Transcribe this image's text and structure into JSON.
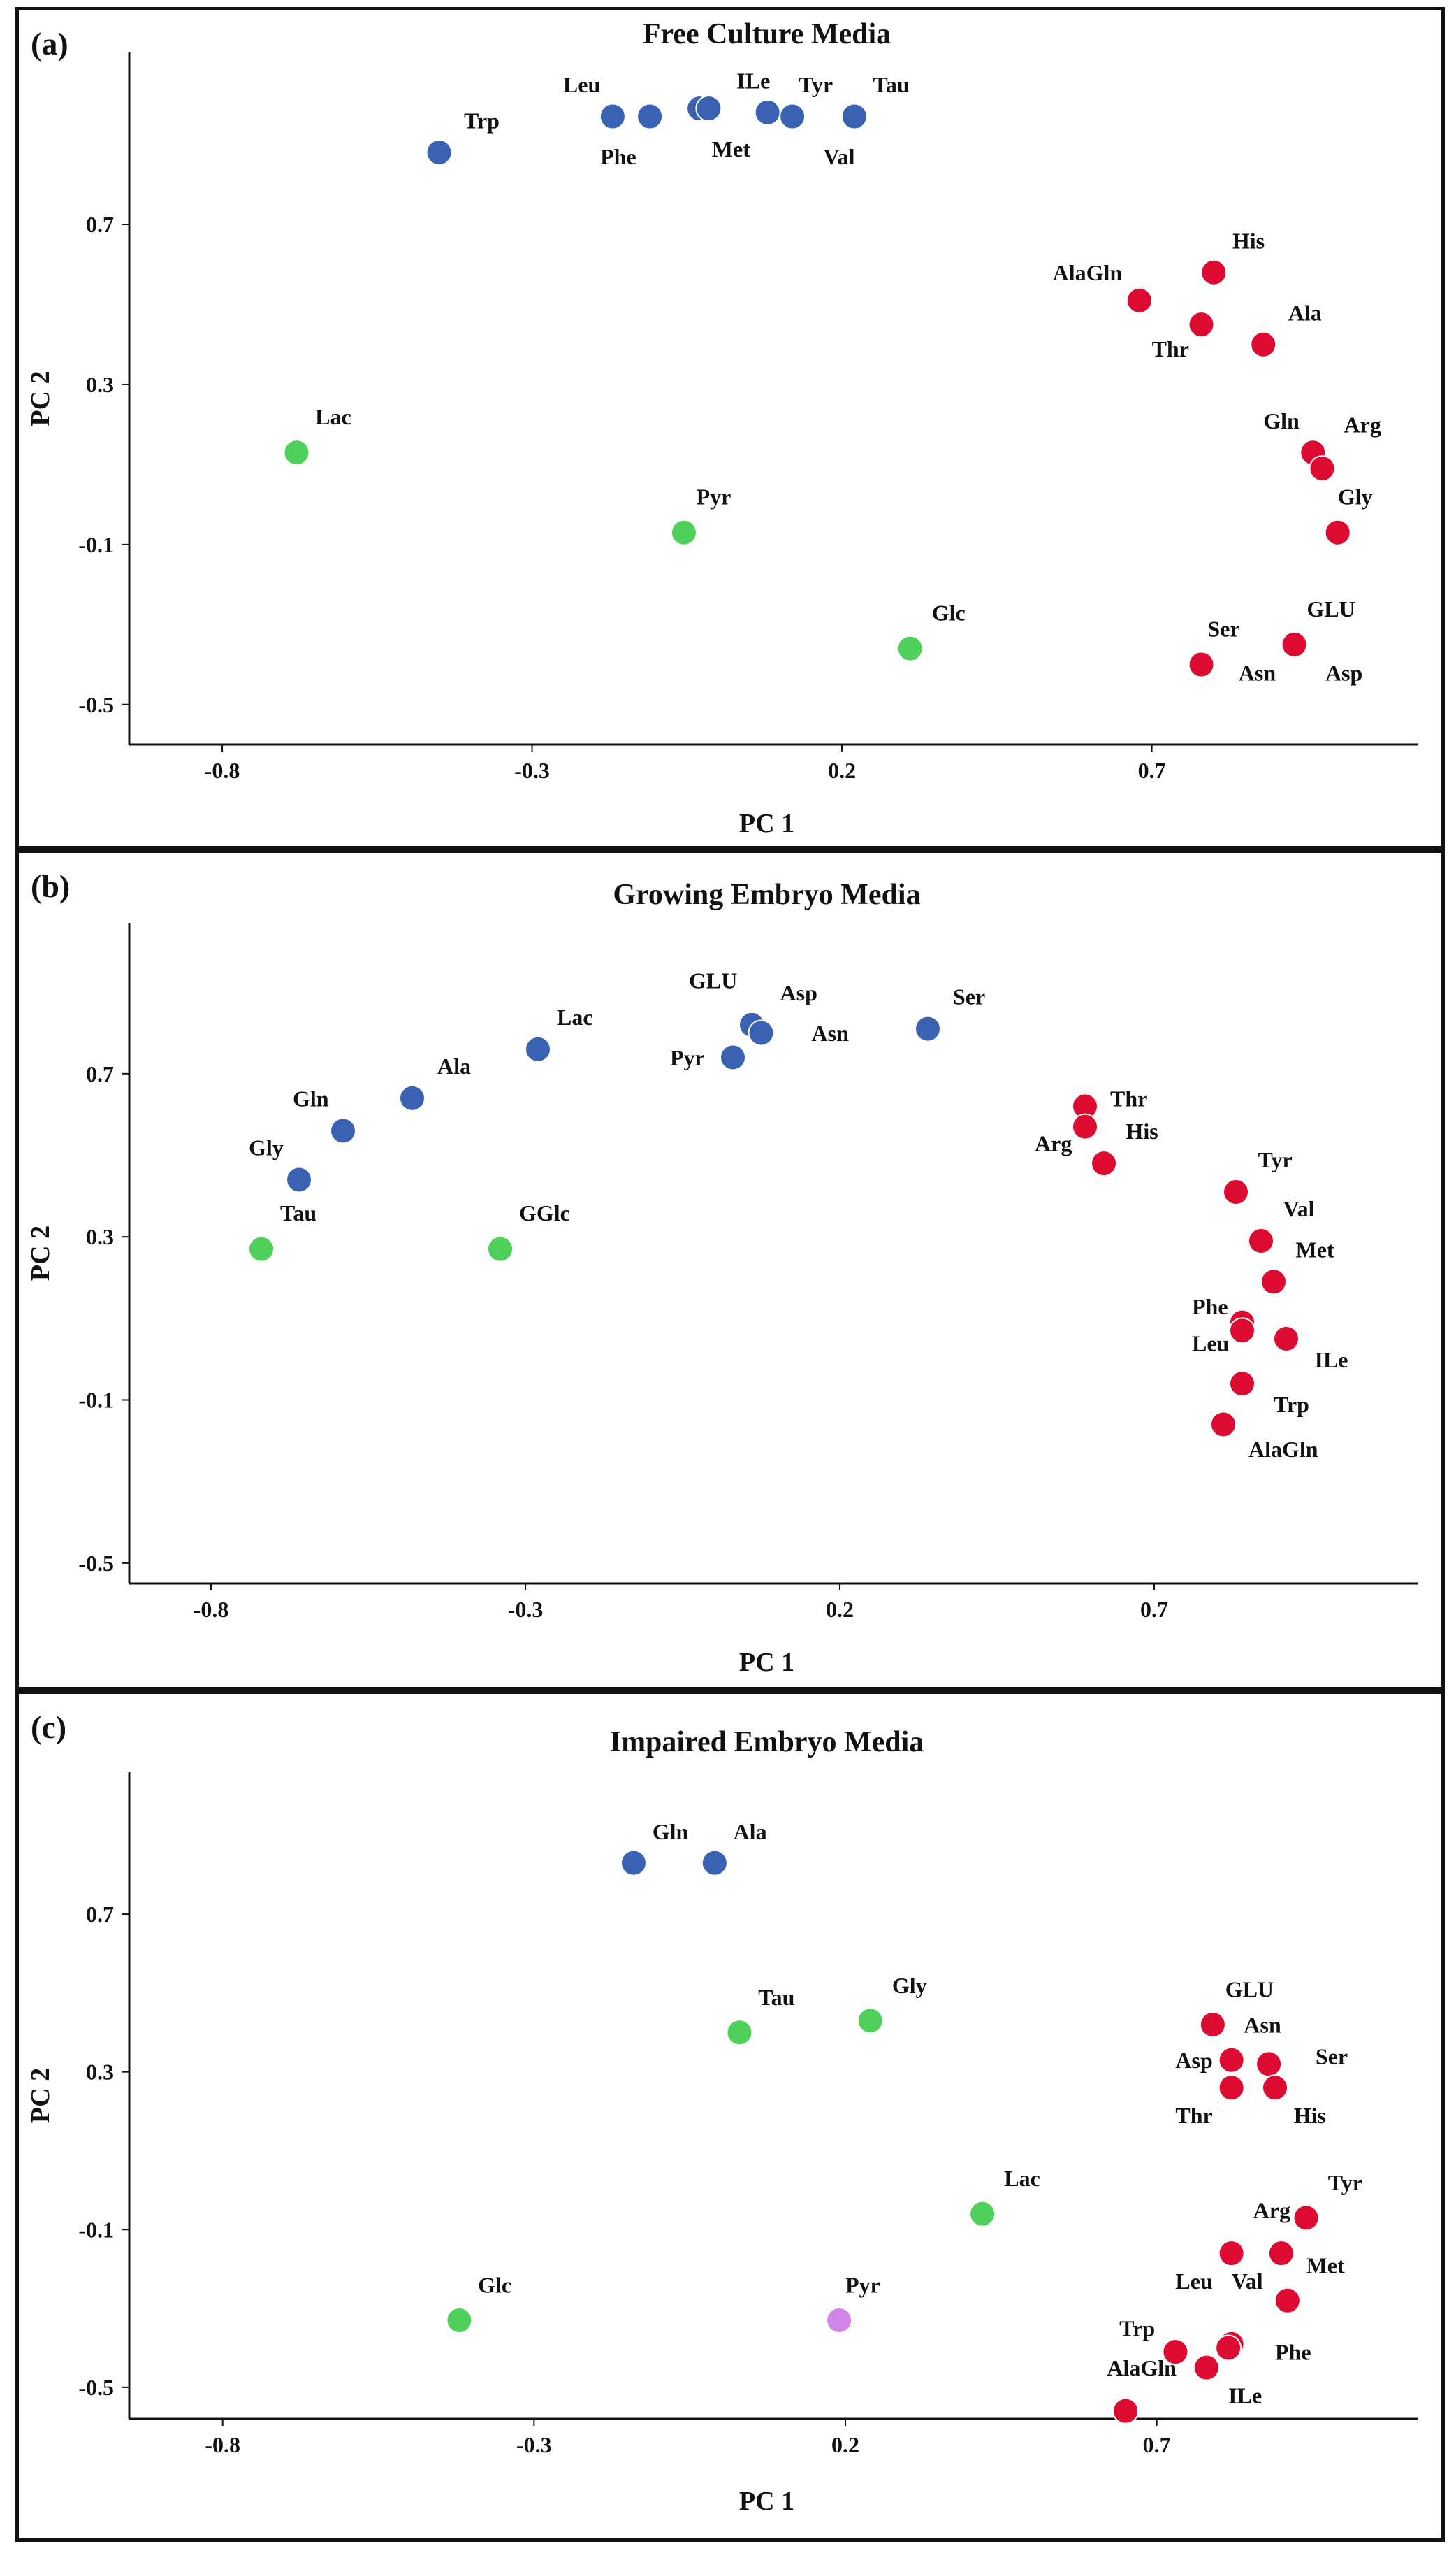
{
  "colors": {
    "blue": "#3a62b3",
    "red": "#dd0b31",
    "green": "#4fd05a",
    "purple": "#cf86e8",
    "axis": "#111111",
    "frame": "#111111"
  },
  "chart_data": [
    {
      "type": "scatter",
      "panel_label": "(a)",
      "title": "Free Culture Media",
      "xlabel": "PC 1",
      "ylabel": "PC 2",
      "xlim": [
        -0.95,
        1.13
      ],
      "ylim": [
        -0.6,
        1.13
      ],
      "xticks": [
        -0.8,
        -0.3,
        0.2,
        0.7
      ],
      "yticks": [
        0.7,
        0.3,
        -0.1,
        -0.5
      ],
      "xtick_labels": [
        "-0.8",
        "-0.3",
        "0.2",
        "0.7"
      ],
      "ytick_labels": [
        "0.7",
        "0.3",
        "-0.1",
        "-0.5"
      ],
      "points": [
        {
          "label": "Trp",
          "x": -0.45,
          "y": 0.88,
          "color": "blue",
          "ldx": 0.04,
          "ldy": 0.06
        },
        {
          "label": "Leu",
          "x": -0.17,
          "y": 0.97,
          "color": "blue",
          "ldx": -0.08,
          "ldy": 0.06
        },
        {
          "label": "Phe",
          "x": -0.11,
          "y": 0.97,
          "color": "blue",
          "ldx": -0.08,
          "ldy": -0.12
        },
        {
          "label": "Met",
          "x": -0.03,
          "y": 0.99,
          "color": "blue",
          "ldx": 0.02,
          "ldy": -0.12
        },
        {
          "label": "",
          "x": -0.015,
          "y": 0.99,
          "color": "blue",
          "ldx": 0,
          "ldy": 0
        },
        {
          "label": "ILe",
          "x": 0.08,
          "y": 0.98,
          "color": "blue",
          "ldx": -0.05,
          "ldy": 0.06
        },
        {
          "label": "Tyr",
          "x": 0.12,
          "y": 0.97,
          "color": "blue",
          "ldx": 0.01,
          "ldy": 0.06
        },
        {
          "label": "Tau",
          "x": 0.22,
          "y": 0.97,
          "color": "blue",
          "ldx": 0.03,
          "ldy": 0.06
        },
        {
          "label": "Val",
          "x": 0.22,
          "y": 0.97,
          "color": "blue",
          "ldx": -0.05,
          "ldy": -0.12
        },
        {
          "label": "His",
          "x": 0.8,
          "y": 0.58,
          "color": "red",
          "ldx": 0.03,
          "ldy": 0.06
        },
        {
          "label": "AlaGln",
          "x": 0.68,
          "y": 0.51,
          "color": "red",
          "ldx": -0.14,
          "ldy": 0.05
        },
        {
          "label": "Thr",
          "x": 0.78,
          "y": 0.45,
          "color": "red",
          "ldx": -0.08,
          "ldy": -0.08
        },
        {
          "label": "Ala",
          "x": 0.88,
          "y": 0.4,
          "color": "red",
          "ldx": 0.04,
          "ldy": 0.06
        },
        {
          "label": "Gln",
          "x": 0.96,
          "y": 0.13,
          "color": "red",
          "ldx": -0.08,
          "ldy": 0.06
        },
        {
          "label": "Arg",
          "x": 0.975,
          "y": 0.09,
          "color": "red",
          "ldx": 0.035,
          "ldy": 0.09
        },
        {
          "label": "Gly",
          "x": 1.0,
          "y": -0.07,
          "color": "red",
          "ldx": 0.0,
          "ldy": 0.07
        },
        {
          "label": "GLU",
          "x": 0.93,
          "y": -0.35,
          "color": "red",
          "ldx": 0.02,
          "ldy": 0.07
        },
        {
          "label": "Ser",
          "x": 0.78,
          "y": -0.4,
          "color": "red",
          "ldx": 0.01,
          "ldy": 0.07
        },
        {
          "label": "Asn",
          "x": 0.78,
          "y": -0.4,
          "color": "red",
          "ldx": 0.06,
          "ldy": -0.04
        },
        {
          "label": "Asp",
          "x": 0.93,
          "y": -0.35,
          "color": "red",
          "ldx": 0.05,
          "ldy": -0.09
        },
        {
          "label": "Lac",
          "x": -0.68,
          "y": 0.13,
          "color": "green",
          "ldx": 0.03,
          "ldy": 0.07
        },
        {
          "label": "Pyr",
          "x": -0.055,
          "y": -0.07,
          "color": "green",
          "ldx": 0.02,
          "ldy": 0.07
        },
        {
          "label": "Glc",
          "x": 0.31,
          "y": -0.36,
          "color": "green",
          "ldx": 0.035,
          "ldy": 0.07
        }
      ]
    },
    {
      "type": "scatter",
      "panel_label": "(b)",
      "title": "Growing Embryo Media",
      "xlabel": "PC 1",
      "ylabel": "PC 2",
      "xlim": [
        -0.93,
        1.12
      ],
      "ylim": [
        -0.55,
        1.07
      ],
      "xticks": [
        -0.8,
        -0.3,
        0.2,
        0.7
      ],
      "yticks": [
        0.7,
        0.3,
        -0.1,
        -0.5
      ],
      "xtick_labels": [
        "-0.8",
        "-0.3",
        "0.2",
        "0.7"
      ],
      "ytick_labels": [
        "0.7",
        "0.3",
        "-0.1",
        "-0.5"
      ],
      "points": [
        {
          "label": "Lac",
          "x": -0.28,
          "y": 0.76,
          "color": "blue",
          "ldx": 0.03,
          "ldy": 0.06
        },
        {
          "label": "Ala",
          "x": -0.48,
          "y": 0.64,
          "color": "blue",
          "ldx": 0.04,
          "ldy": 0.06
        },
        {
          "label": "Gln",
          "x": -0.59,
          "y": 0.56,
          "color": "blue",
          "ldx": -0.08,
          "ldy": 0.06
        },
        {
          "label": "Gly",
          "x": -0.66,
          "y": 0.44,
          "color": "blue",
          "ldx": -0.08,
          "ldy": 0.06
        },
        {
          "label": "GLU",
          "x": 0.06,
          "y": 0.82,
          "color": "blue",
          "ldx": -0.1,
          "ldy": 0.09
        },
        {
          "label": "Asp",
          "x": 0.075,
          "y": 0.8,
          "color": "blue",
          "ldx": 0.03,
          "ldy": 0.08
        },
        {
          "label": "Pyr",
          "x": 0.03,
          "y": 0.74,
          "color": "blue",
          "ldx": -0.1,
          "ldy": -0.02
        },
        {
          "label": "Asn",
          "x": 0.075,
          "y": 0.8,
          "color": "blue",
          "ldx": 0.08,
          "ldy": -0.02
        },
        {
          "label": "Ser",
          "x": 0.34,
          "y": 0.81,
          "color": "blue",
          "ldx": 0.04,
          "ldy": 0.06
        },
        {
          "label": "Thr",
          "x": 0.59,
          "y": 0.62,
          "color": "red",
          "ldx": 0.04,
          "ldy": 0.0
        },
        {
          "label": "Arg",
          "x": 0.59,
          "y": 0.57,
          "color": "red",
          "ldx": -0.08,
          "ldy": -0.06
        },
        {
          "label": "His",
          "x": 0.62,
          "y": 0.48,
          "color": "red",
          "ldx": 0.035,
          "ldy": 0.06
        },
        {
          "label": "Tyr",
          "x": 0.83,
          "y": 0.41,
          "color": "red",
          "ldx": 0.035,
          "ldy": 0.06
        },
        {
          "label": "Val",
          "x": 0.87,
          "y": 0.29,
          "color": "red",
          "ldx": 0.035,
          "ldy": 0.06
        },
        {
          "label": "Met",
          "x": 0.89,
          "y": 0.19,
          "color": "red",
          "ldx": 0.035,
          "ldy": 0.06
        },
        {
          "label": "Phe",
          "x": 0.84,
          "y": 0.09,
          "color": "red",
          "ldx": -0.08,
          "ldy": 0.02
        },
        {
          "label": "Leu",
          "x": 0.84,
          "y": 0.07,
          "color": "red",
          "ldx": -0.08,
          "ldy": -0.05
        },
        {
          "label": "ILe",
          "x": 0.91,
          "y": 0.05,
          "color": "red",
          "ldx": 0.045,
          "ldy": -0.07
        },
        {
          "label": "Trp",
          "x": 0.84,
          "y": -0.06,
          "color": "red",
          "ldx": 0.05,
          "ldy": -0.07
        },
        {
          "label": "AlaGln",
          "x": 0.81,
          "y": -0.16,
          "color": "red",
          "ldx": 0.04,
          "ldy": -0.08
        },
        {
          "label": "Tau",
          "x": -0.72,
          "y": 0.27,
          "color": "green",
          "ldx": 0.03,
          "ldy": 0.07
        },
        {
          "label": "GGlc",
          "x": -0.34,
          "y": 0.27,
          "color": "green",
          "ldx": 0.03,
          "ldy": 0.07
        }
      ]
    },
    {
      "type": "scatter",
      "panel_label": "(c)",
      "title": "Impaired Embryo Media",
      "xlabel": "PC 1",
      "ylabel": "PC 2",
      "xlim": [
        -0.95,
        1.12
      ],
      "ylim": [
        -0.58,
        1.06
      ],
      "xticks": [
        -0.8,
        -0.3,
        0.2,
        0.7
      ],
      "yticks": [
        0.7,
        0.3,
        -0.1,
        -0.5
      ],
      "xtick_labels": [
        "-0.8",
        "-0.3",
        "0.2",
        "0.7"
      ],
      "ytick_labels": [
        "0.7",
        "0.3",
        "-0.1",
        "-0.5"
      ],
      "points": [
        {
          "label": "Gln",
          "x": -0.14,
          "y": 0.83,
          "color": "blue",
          "ldx": 0.03,
          "ldy": 0.06
        },
        {
          "label": "Ala",
          "x": -0.01,
          "y": 0.83,
          "color": "blue",
          "ldx": 0.03,
          "ldy": 0.06
        },
        {
          "label": "Tau",
          "x": 0.03,
          "y": 0.4,
          "color": "green",
          "ldx": 0.03,
          "ldy": 0.07
        },
        {
          "label": "Gly",
          "x": 0.24,
          "y": 0.43,
          "color": "green",
          "ldx": 0.035,
          "ldy": 0.07
        },
        {
          "label": "Lac",
          "x": 0.42,
          "y": -0.06,
          "color": "green",
          "ldx": 0.035,
          "ldy": 0.07
        },
        {
          "label": "Glc",
          "x": -0.42,
          "y": -0.33,
          "color": "green",
          "ldx": 0.03,
          "ldy": 0.07
        },
        {
          "label": "Pyr",
          "x": 0.19,
          "y": -0.33,
          "color": "purple",
          "ldx": 0.01,
          "ldy": 0.07
        },
        {
          "label": "GLU",
          "x": 0.79,
          "y": 0.42,
          "color": "red",
          "ldx": 0.02,
          "ldy": 0.07
        },
        {
          "label": "Asp",
          "x": 0.82,
          "y": 0.33,
          "color": "red",
          "ldx": -0.09,
          "ldy": -0.02
        },
        {
          "label": "Asn",
          "x": 0.88,
          "y": 0.32,
          "color": "red",
          "ldx": -0.04,
          "ldy": 0.08
        },
        {
          "label": "Thr",
          "x": 0.82,
          "y": 0.26,
          "color": "red",
          "ldx": -0.09,
          "ldy": -0.09
        },
        {
          "label": "Ser",
          "x": 0.89,
          "y": 0.26,
          "color": "red",
          "ldx": 0.065,
          "ldy": 0.06
        },
        {
          "label": "His",
          "x": 0.89,
          "y": 0.26,
          "color": "red",
          "ldx": 0.03,
          "ldy": -0.09
        },
        {
          "label": "Tyr",
          "x": 0.94,
          "y": -0.07,
          "color": "red",
          "ldx": 0.035,
          "ldy": 0.07
        },
        {
          "label": "Arg",
          "x": 0.9,
          "y": -0.16,
          "color": "red",
          "ldx": -0.045,
          "ldy": 0.09
        },
        {
          "label": "Leu",
          "x": 0.82,
          "y": -0.16,
          "color": "red",
          "ldx": -0.09,
          "ldy": -0.09
        },
        {
          "label": "Val",
          "x": 0.82,
          "y": -0.16,
          "color": "red",
          "ldx": 0.0,
          "ldy": -0.09
        },
        {
          "label": "Met",
          "x": 0.91,
          "y": -0.28,
          "color": "red",
          "ldx": 0.03,
          "ldy": 0.07
        },
        {
          "label": "Phe",
          "x": 0.82,
          "y": -0.39,
          "color": "red",
          "ldx": 0.07,
          "ldy": -0.04
        },
        {
          "label": "",
          "x": 0.815,
          "y": -0.4,
          "color": "red",
          "ldx": 0,
          "ldy": 0
        },
        {
          "label": "Trp",
          "x": 0.73,
          "y": -0.41,
          "color": "red",
          "ldx": -0.09,
          "ldy": 0.04
        },
        {
          "label": "ILe",
          "x": 0.78,
          "y": -0.45,
          "color": "red",
          "ldx": 0.035,
          "ldy": -0.09
        },
        {
          "label": "AlaGln",
          "x": 0.65,
          "y": -0.56,
          "color": "red",
          "ldx": -0.03,
          "ldy": 0.09
        }
      ]
    }
  ]
}
